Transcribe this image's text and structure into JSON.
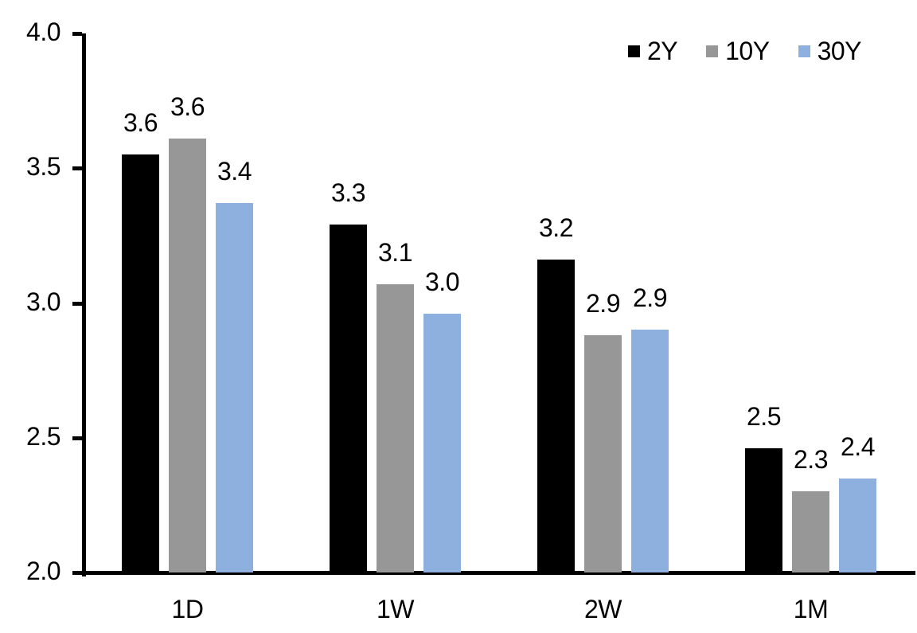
{
  "chart_data": {
    "type": "bar",
    "title": "",
    "xlabel": "",
    "ylabel": "",
    "categories": [
      "1D",
      "1W",
      "2W",
      "1M"
    ],
    "series": [
      {
        "name": "2Y",
        "color": "#000000",
        "values": [
          3.55,
          3.29,
          3.16,
          2.46
        ],
        "data_labels": [
          "3.6",
          "3.3",
          "3.2",
          "2.5"
        ]
      },
      {
        "name": "10Y",
        "color": "#979797",
        "values": [
          3.61,
          3.07,
          2.88,
          2.3
        ],
        "data_labels": [
          "3.6",
          "3.1",
          "2.9",
          "2.3"
        ]
      },
      {
        "name": "30Y",
        "color": "#8DB0DE",
        "values": [
          3.37,
          2.96,
          2.9,
          2.35
        ],
        "data_labels": [
          "3.4",
          "3.0",
          "2.9",
          "2.4"
        ]
      }
    ],
    "ylim": [
      2.0,
      4.0
    ],
    "yticks": [
      4.0,
      3.5,
      3.0,
      2.5,
      2.0
    ],
    "ytick_labels": [
      "4.0",
      "3.5",
      "3.0",
      "2.5",
      "2.0"
    ],
    "grid": false,
    "legend_position": "top-right",
    "axis_color": "#000000",
    "background_color": "#ffffff"
  }
}
